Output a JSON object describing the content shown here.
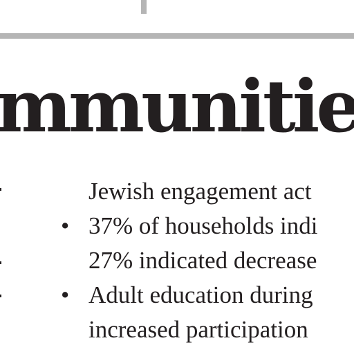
{
  "heading": {
    "text": "mmunities"
  },
  "lines": [
    {
      "bullet": "",
      "text": "Jewish engagement act"
    },
    {
      "bullet": "•",
      "text": "37% of households indi"
    },
    {
      "bullet": "",
      "text": "27% indicated decrease"
    },
    {
      "bullet": "•",
      "text": "Adult education during"
    },
    {
      "bullet": "",
      "text": "increased participation"
    }
  ]
}
